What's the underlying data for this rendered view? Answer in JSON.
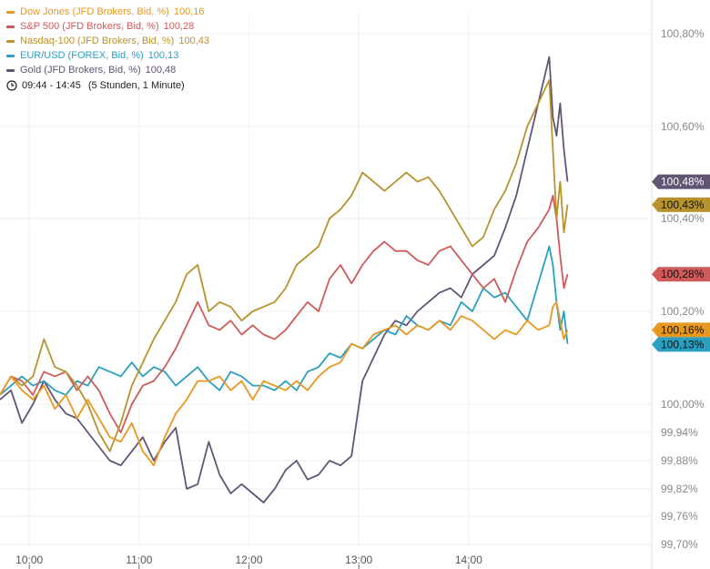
{
  "legend": {
    "time_range": "09:44 - 14:45",
    "duration": "(5 Stunden, 1 Minute)"
  },
  "chart_data": {
    "type": "line",
    "title": "",
    "xlabel": "",
    "ylabel": "",
    "x_ticks": [
      "10:00",
      "11:00",
      "12:00",
      "13:00",
      "14:00"
    ],
    "x_tick_minutes": [
      600,
      660,
      720,
      780,
      840
    ],
    "xlim_minutes": [
      584,
      940
    ],
    "y_ticks": [
      "100,80%",
      "100,60%",
      "100,40%",
      "100,20%",
      "100,00%",
      "99,94%",
      "99,88%",
      "99,82%",
      "99,76%",
      "99,70%"
    ],
    "y_tick_values": [
      100.8,
      100.6,
      100.4,
      100.2,
      100.0,
      99.94,
      99.88,
      99.82,
      99.76,
      99.7
    ],
    "series": [
      {
        "name": "Dow Jones (JFD Brokers, Bid, %)",
        "last_label": "100,16",
        "end_tag": "100,16%",
        "color": "#e8981e",
        "tag_text_color": "#111111",
        "x": [
          584,
          590,
          596,
          602,
          608,
          614,
          620,
          626,
          632,
          638,
          644,
          650,
          656,
          662,
          668,
          674,
          680,
          686,
          692,
          698,
          704,
          710,
          716,
          722,
          728,
          734,
          740,
          746,
          752,
          758,
          764,
          770,
          776,
          782,
          788,
          794,
          800,
          806,
          812,
          818,
          824,
          830,
          836,
          842,
          848,
          854,
          860,
          866,
          872,
          878,
          884,
          886,
          888,
          890,
          892,
          894
        ],
        "values": [
          100.02,
          100.06,
          100.03,
          100.01,
          100.04,
          99.99,
          100.02,
          99.97,
          100.01,
          99.97,
          99.93,
          99.92,
          99.96,
          99.9,
          99.87,
          99.93,
          99.98,
          100.01,
          100.05,
          100.05,
          100.06,
          100.03,
          100.05,
          100.01,
          100.05,
          100.04,
          100.03,
          100.05,
          100.03,
          100.06,
          100.08,
          100.09,
          100.13,
          100.12,
          100.15,
          100.16,
          100.17,
          100.15,
          100.17,
          100.16,
          100.18,
          100.16,
          100.19,
          100.18,
          100.16,
          100.14,
          100.16,
          100.15,
          100.18,
          100.16,
          100.17,
          100.21,
          100.22,
          100.18,
          100.14,
          100.16
        ]
      },
      {
        "name": "S&P 500 (JFD Brokers, Bid, %)",
        "last_label": "100,28",
        "end_tag": "100,28%",
        "color": "#cf5a5a",
        "tag_text_color": "#111111",
        "x": [
          584,
          590,
          596,
          602,
          608,
          614,
          620,
          626,
          632,
          638,
          644,
          650,
          656,
          662,
          668,
          674,
          680,
          686,
          692,
          698,
          704,
          710,
          716,
          722,
          728,
          734,
          740,
          746,
          752,
          758,
          764,
          770,
          776,
          782,
          788,
          794,
          800,
          806,
          812,
          818,
          824,
          830,
          836,
          842,
          848,
          854,
          860,
          866,
          872,
          878,
          884,
          886,
          888,
          890,
          892,
          894
        ],
        "values": [
          100.02,
          100.06,
          100.05,
          100.02,
          100.07,
          100.06,
          100.07,
          100.03,
          100.06,
          100.03,
          99.98,
          99.94,
          100.0,
          100.04,
          100.05,
          100.08,
          100.12,
          100.17,
          100.22,
          100.17,
          100.16,
          100.18,
          100.15,
          100.17,
          100.15,
          100.14,
          100.16,
          100.19,
          100.22,
          100.2,
          100.27,
          100.3,
          100.26,
          100.3,
          100.33,
          100.35,
          100.33,
          100.33,
          100.31,
          100.3,
          100.33,
          100.34,
          100.31,
          100.28,
          100.25,
          100.27,
          100.22,
          100.29,
          100.35,
          100.38,
          100.42,
          100.45,
          100.4,
          100.32,
          100.25,
          100.28
        ]
      },
      {
        "name": "Nasdaq-100 (JFD Brokers, Bid, %)",
        "last_label": "100,43",
        "end_tag": "100,43%",
        "color": "#b8922c",
        "tag_text_color": "#111111",
        "x": [
          584,
          590,
          596,
          602,
          608,
          614,
          620,
          626,
          632,
          638,
          644,
          650,
          656,
          662,
          668,
          674,
          680,
          686,
          692,
          698,
          704,
          710,
          716,
          722,
          728,
          734,
          740,
          746,
          752,
          758,
          764,
          770,
          776,
          782,
          788,
          794,
          800,
          806,
          812,
          818,
          824,
          830,
          836,
          842,
          848,
          854,
          860,
          866,
          872,
          878,
          884,
          886,
          888,
          890,
          892,
          894
        ],
        "values": [
          100.02,
          100.06,
          100.04,
          100.06,
          100.14,
          100.08,
          100.07,
          100.04,
          100.0,
          99.94,
          99.9,
          99.96,
          100.04,
          100.09,
          100.14,
          100.18,
          100.22,
          100.28,
          100.3,
          100.2,
          100.22,
          100.21,
          100.18,
          100.2,
          100.21,
          100.22,
          100.25,
          100.3,
          100.32,
          100.34,
          100.4,
          100.42,
          100.45,
          100.5,
          100.48,
          100.46,
          100.48,
          100.5,
          100.48,
          100.49,
          100.46,
          100.42,
          100.38,
          100.34,
          100.36,
          100.42,
          100.46,
          100.52,
          100.6,
          100.65,
          100.7,
          100.55,
          100.4,
          100.48,
          100.37,
          100.43
        ]
      },
      {
        "name": "EUR/USD (FOREX, Bid, %)",
        "last_label": "100,13",
        "end_tag": "100,13%",
        "color": "#2a9fc0",
        "tag_text_color": "#111111",
        "x": [
          584,
          590,
          596,
          602,
          608,
          614,
          620,
          626,
          632,
          638,
          644,
          650,
          656,
          662,
          668,
          674,
          680,
          686,
          692,
          698,
          704,
          710,
          716,
          722,
          728,
          734,
          740,
          746,
          752,
          758,
          764,
          770,
          776,
          782,
          788,
          794,
          800,
          806,
          812,
          818,
          824,
          830,
          836,
          842,
          848,
          854,
          860,
          866,
          872,
          878,
          884,
          886,
          888,
          890,
          892,
          894
        ],
        "values": [
          100.02,
          100.04,
          100.06,
          100.04,
          100.05,
          100.03,
          100.02,
          100.05,
          100.04,
          100.08,
          100.07,
          100.06,
          100.09,
          100.06,
          100.08,
          100.07,
          100.04,
          100.06,
          100.08,
          100.05,
          100.03,
          100.07,
          100.06,
          100.04,
          100.04,
          100.03,
          100.05,
          100.03,
          100.07,
          100.08,
          100.11,
          100.1,
          100.13,
          100.12,
          100.14,
          100.16,
          100.15,
          100.19,
          100.17,
          100.16,
          100.18,
          100.17,
          100.22,
          100.2,
          100.25,
          100.23,
          100.24,
          100.21,
          100.18,
          100.26,
          100.34,
          100.3,
          100.22,
          100.16,
          100.2,
          100.13
        ]
      },
      {
        "name": "Gold (JFD Brokers, Bid, %)",
        "last_label": "100,48",
        "end_tag": "100,48%",
        "color": "#625574",
        "tag_text_color": "#ffffff",
        "x": [
          584,
          590,
          596,
          602,
          608,
          614,
          620,
          626,
          632,
          638,
          644,
          650,
          656,
          662,
          668,
          674,
          680,
          686,
          692,
          698,
          704,
          710,
          716,
          722,
          728,
          734,
          740,
          746,
          752,
          758,
          764,
          770,
          776,
          782,
          788,
          794,
          800,
          806,
          812,
          818,
          824,
          830,
          836,
          842,
          848,
          854,
          860,
          866,
          872,
          878,
          884,
          886,
          888,
          890,
          892,
          894
        ],
        "values": [
          100.01,
          100.03,
          99.96,
          100.0,
          100.05,
          100.01,
          99.98,
          99.97,
          99.94,
          99.91,
          99.88,
          99.87,
          99.9,
          99.93,
          99.88,
          99.92,
          99.95,
          99.82,
          99.83,
          99.92,
          99.85,
          99.81,
          99.83,
          99.81,
          99.79,
          99.82,
          99.86,
          99.88,
          99.84,
          99.85,
          99.88,
          99.87,
          99.89,
          100.05,
          100.1,
          100.15,
          100.18,
          100.17,
          100.2,
          100.22,
          100.24,
          100.25,
          100.23,
          100.28,
          100.3,
          100.32,
          100.38,
          100.45,
          100.55,
          100.65,
          100.75,
          100.62,
          100.58,
          100.65,
          100.55,
          100.48
        ]
      }
    ]
  }
}
